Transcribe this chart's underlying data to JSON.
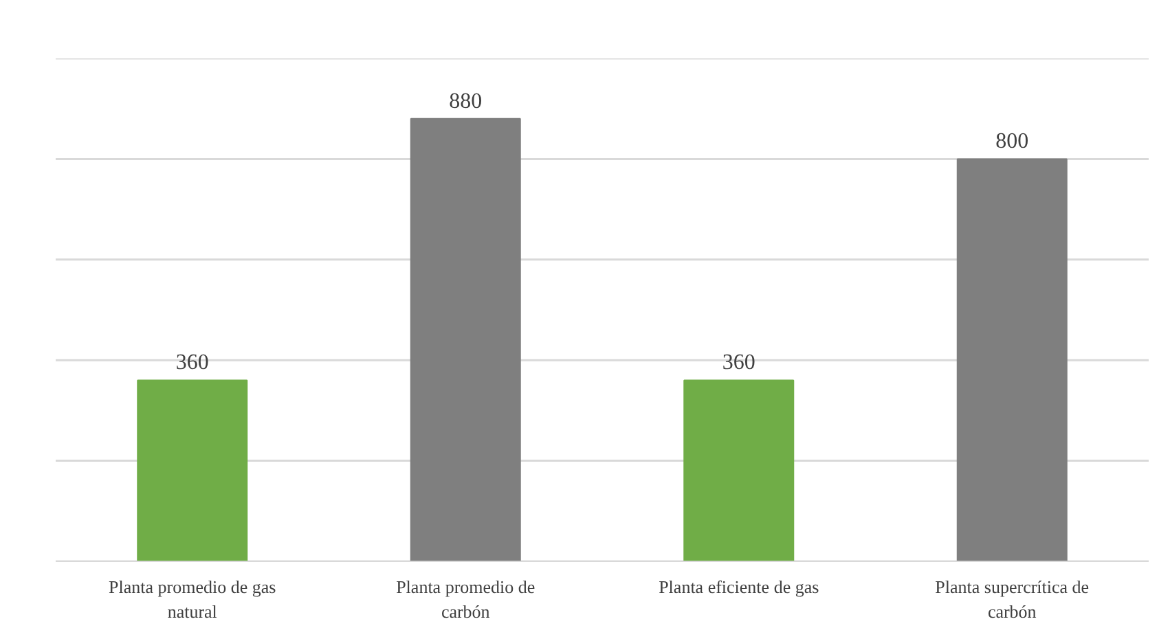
{
  "chart_data": {
    "type": "bar",
    "categories": [
      "Planta promedio de gas natural",
      "Planta promedio de carbón",
      "Planta eficiente de gas",
      "Planta supercrítica de carbón"
    ],
    "values": [
      360,
      880,
      360,
      800
    ],
    "colors": [
      "#70ad47",
      "#7f7f7f",
      "#70ad47",
      "#7f7f7f"
    ],
    "ylim": [
      0,
      1000
    ],
    "yticks": [
      {
        "value": 0,
        "label": null
      },
      {
        "value": 200,
        "label": null
      },
      {
        "value": 400,
        "label": null
      },
      {
        "value": 600,
        "label": null
      },
      {
        "value": 800,
        "label": null
      },
      {
        "value": 1000,
        "label": null
      }
    ],
    "tick_labels": "x",
    "grid": "y",
    "data_labels": true
  }
}
